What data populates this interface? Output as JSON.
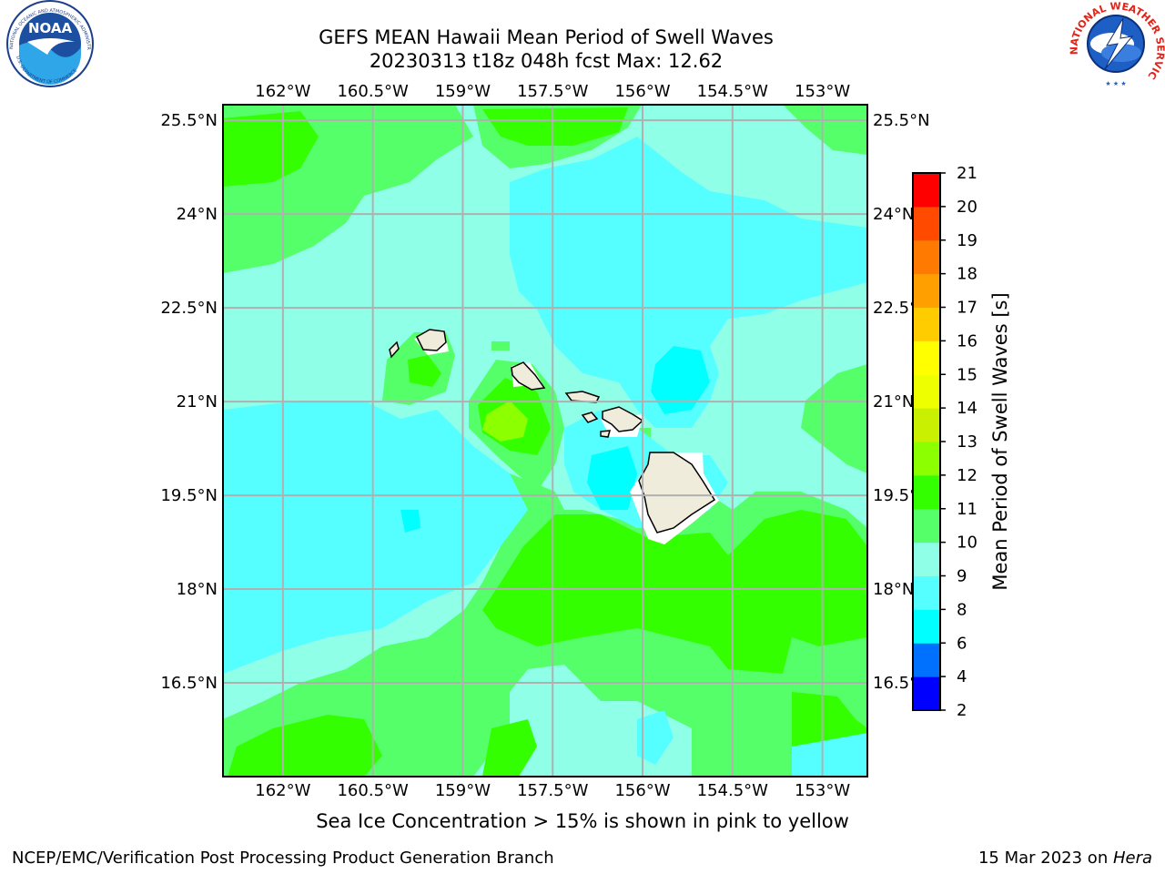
{
  "title": {
    "line1": "GEFS MEAN Hawaii Mean Period of Swell Waves",
    "line2": "20230313 t18z 048h fcst   Max: 12.62"
  },
  "caption": "Sea Ice Concentration > 15% is shown in pink to yellow",
  "footer": {
    "left": "NCEP/EMC/Verification Post Processing Product Generation Branch",
    "right_date": "15 Mar 2023 on ",
    "right_host": "Hera"
  },
  "logos": {
    "noaa_text": "NOAA",
    "noaa_ring_top": "NATIONAL OCEANIC AND ATMOSPHERIC ADMINISTRATION",
    "noaa_ring_bottom": "U.S. DEPARTMENT OF COMMERCE",
    "nws_ring": "NATIONAL WEATHER SERVICE"
  },
  "chart_data": {
    "type": "heatmap",
    "extent_lon": [
      -163.0,
      -152.25
    ],
    "extent_lat": [
      15.0,
      25.75
    ],
    "lon_ticks": [
      "162°W",
      "160.5°W",
      "159°W",
      "157.5°W",
      "156°W",
      "154.5°W",
      "153°W"
    ],
    "lon_values": [
      -162.0,
      -160.5,
      -159.0,
      -157.5,
      -156.0,
      -154.5,
      -153.0
    ],
    "lat_ticks": [
      "25.5°N",
      "24°N",
      "22.5°N",
      "21°N",
      "19.5°N",
      "18°N",
      "16.5°N"
    ],
    "lat_values": [
      25.5,
      24.0,
      22.5,
      21.0,
      19.5,
      18.0,
      16.5
    ],
    "grid": true,
    "colorbar": {
      "label": "Mean Period of Swell Waves [s]",
      "levels": [
        2,
        4,
        6,
        8,
        9,
        10,
        11,
        12,
        13,
        14,
        15,
        16,
        17,
        18,
        19,
        20,
        21
      ],
      "colors": [
        "#0000ff",
        "#0070ff",
        "#00ffff",
        "#55ffff",
        "#90ffe8",
        "#55ff6a",
        "#33ff00",
        "#8cff00",
        "#c8f000",
        "#eeff00",
        "#ffff00",
        "#ffcc00",
        "#ffa000",
        "#ff7a00",
        "#ff4a00",
        "#ff0000"
      ]
    },
    "max_value": 12.62
  }
}
